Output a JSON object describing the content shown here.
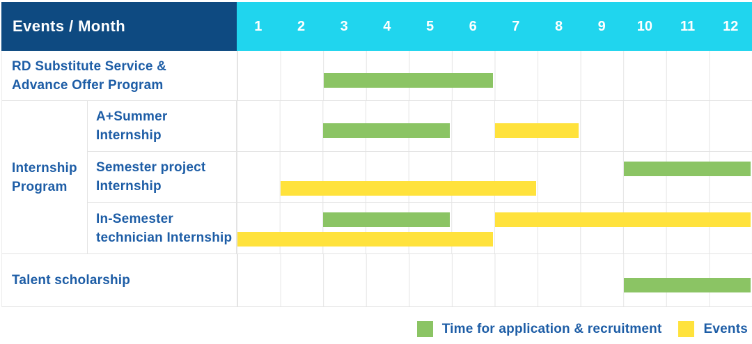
{
  "colors": {
    "navy": "#0e4a81",
    "cyan": "#20d5ee",
    "green": "#8bc464",
    "yellow": "#ffe23c",
    "label_blue": "#1d5da6",
    "grid": "#e4e4e4"
  },
  "header": {
    "corner_label": "Events / Month",
    "months": [
      "1",
      "2",
      "3",
      "4",
      "5",
      "6",
      "7",
      "8",
      "9",
      "10",
      "11",
      "12"
    ]
  },
  "body": {
    "rows": [
      {
        "type": "simple",
        "size": "first",
        "label_lines": [
          "RD Substitute Service &",
          "Advance Offer Program"
        ],
        "bars": [
          {
            "color": "green",
            "start_month": 3,
            "end_month": 6,
            "lane": "single"
          }
        ]
      },
      {
        "type": "group",
        "label_lines": [
          "Internship",
          "Program"
        ],
        "children": [
          {
            "label_lines": [
              "A+Summer",
              "Internship"
            ],
            "bars": [
              {
                "color": "green",
                "start_month": 3,
                "end_month": 5,
                "lane": "single"
              },
              {
                "color": "yellow",
                "start_month": 7,
                "end_month": 8,
                "lane": "single"
              }
            ]
          },
          {
            "label_lines": [
              "Semester project",
              "Internship"
            ],
            "bars": [
              {
                "color": "green",
                "start_month": 10,
                "end_month": 12,
                "lane": "top"
              },
              {
                "color": "yellow",
                "start_month": 2,
                "end_month": 7,
                "lane": "bottom"
              }
            ]
          },
          {
            "label_lines": [
              "In-Semester",
              "technician Internship"
            ],
            "bars": [
              {
                "color": "green",
                "start_month": 3,
                "end_month": 5,
                "lane": "top"
              },
              {
                "color": "yellow",
                "start_month": 7,
                "end_month": 12,
                "lane": "top"
              },
              {
                "color": "yellow",
                "start_month": 1,
                "end_month": 6,
                "lane": "bottom"
              }
            ]
          }
        ]
      },
      {
        "type": "simple",
        "size": "last",
        "label_lines": [
          "Talent scholarship"
        ],
        "bars": [
          {
            "color": "green",
            "start_month": 10,
            "end_month": 12,
            "lane": "single"
          }
        ]
      }
    ]
  },
  "legend": [
    {
      "color": "green",
      "label": "Time for application & recruitment"
    },
    {
      "color": "yellow",
      "label": "Events"
    }
  ],
  "chart_data": {
    "type": "bar",
    "subtype": "gantt",
    "title": "Events / Month",
    "x_categories": [
      1,
      2,
      3,
      4,
      5,
      6,
      7,
      8,
      9,
      10,
      11,
      12
    ],
    "xlim": [
      1,
      12
    ],
    "grid": true,
    "legend_position": "bottom-right",
    "series_legend": [
      {
        "name": "Time for application & recruitment",
        "color": "#8bc464"
      },
      {
        "name": "Events",
        "color": "#ffe23c"
      }
    ],
    "rows": [
      {
        "event": "RD Substitute Service & Advance Offer Program",
        "group": null,
        "spans": [
          {
            "series": "Time for application & recruitment",
            "start_month": 3,
            "end_month": 6
          }
        ]
      },
      {
        "event": "A+Summer Internship",
        "group": "Internship Program",
        "spans": [
          {
            "series": "Time for application & recruitment",
            "start_month": 3,
            "end_month": 5
          },
          {
            "series": "Events",
            "start_month": 7,
            "end_month": 8
          }
        ]
      },
      {
        "event": "Semester project Internship",
        "group": "Internship Program",
        "spans": [
          {
            "series": "Time for application & recruitment",
            "start_month": 10,
            "end_month": 12
          },
          {
            "series": "Events",
            "start_month": 2,
            "end_month": 7
          }
        ]
      },
      {
        "event": "In-Semester technician Internship",
        "group": "Internship Program",
        "spans": [
          {
            "series": "Time for application & recruitment",
            "start_month": 3,
            "end_month": 5
          },
          {
            "series": "Events",
            "start_month": 7,
            "end_month": 12
          },
          {
            "series": "Events",
            "start_month": 1,
            "end_month": 6
          }
        ]
      },
      {
        "event": "Talent scholarship",
        "group": null,
        "spans": [
          {
            "series": "Time for application & recruitment",
            "start_month": 10,
            "end_month": 12
          }
        ]
      }
    ]
  }
}
